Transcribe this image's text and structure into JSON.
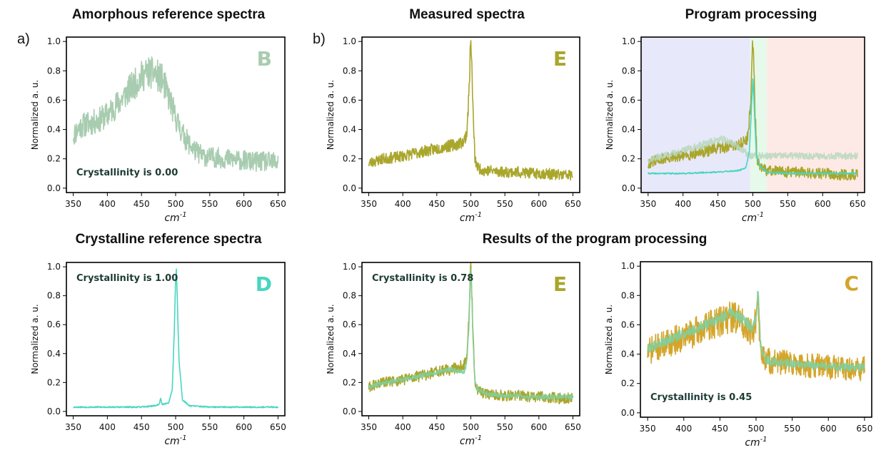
{
  "section_titles": {
    "amorphous": "Amorphous reference spectra",
    "measured": "Measured spectra",
    "program": "Program processing",
    "crystalline": "Crystalline reference spectra",
    "results": "Results of the program processing"
  },
  "panel_tags": {
    "a": "a)",
    "b": "b)"
  },
  "colors": {
    "amorphous": "#a8ccb0",
    "measured_E": "#a9a62c",
    "crystalline": "#48d6bf",
    "measured_C": "#d4a52b",
    "fit": "#7fcf9d",
    "region_left": "#e8e8fb",
    "region_mid": "#e7f9ea",
    "region_right": "#fdeae6"
  },
  "chart_data": [
    {
      "id": "amorphous-ref",
      "type": "line",
      "letter": "B",
      "letter_color": "#a8ccb0",
      "annotation": "Crystallinity is 0.00",
      "annotation_pos": "bottom-left",
      "xlabel": "cm^-1",
      "ylabel": "Normalized a. u.",
      "xlim": [
        340,
        660
      ],
      "ylim": [
        -0.03,
        1.03
      ],
      "xticks": [
        350,
        400,
        450,
        500,
        550,
        600,
        650
      ],
      "yticks": [
        0.0,
        0.2,
        0.4,
        0.6,
        0.8,
        1.0
      ],
      "series": [
        {
          "color": "#a8ccb0",
          "noise": 0.09,
          "seed": 11,
          "x": [
            350,
            360,
            370,
            380,
            390,
            400,
            410,
            420,
            430,
            440,
            450,
            460,
            470,
            480,
            490,
            500,
            510,
            520,
            530,
            540,
            550,
            560,
            570,
            580,
            590,
            600,
            610,
            620,
            630,
            640,
            650
          ],
          "y": [
            0.36,
            0.42,
            0.44,
            0.45,
            0.47,
            0.5,
            0.55,
            0.6,
            0.66,
            0.71,
            0.76,
            0.79,
            0.78,
            0.74,
            0.62,
            0.48,
            0.37,
            0.3,
            0.25,
            0.22,
            0.21,
            0.21,
            0.2,
            0.2,
            0.19,
            0.19,
            0.18,
            0.18,
            0.18,
            0.18,
            0.18
          ]
        }
      ]
    },
    {
      "id": "measured-E",
      "type": "line",
      "letter": "E",
      "letter_color": "#a9a62c",
      "xlabel": "cm^-1",
      "ylabel": "Normalized a. u.",
      "xlim": [
        340,
        660
      ],
      "ylim": [
        -0.03,
        1.03
      ],
      "xticks": [
        350,
        400,
        450,
        500,
        550,
        600,
        650
      ],
      "yticks": [
        0.0,
        0.2,
        0.4,
        0.6,
        0.8,
        1.0
      ],
      "series": [
        {
          "color": "#a9a62c",
          "noise": 0.05,
          "seed": 23,
          "x": [
            350,
            370,
            390,
            410,
            430,
            450,
            470,
            480,
            490,
            494,
            497,
            499,
            500,
            501,
            503,
            506,
            510,
            520,
            530,
            550,
            570,
            590,
            610,
            630,
            650
          ],
          "y": [
            0.17,
            0.2,
            0.21,
            0.23,
            0.25,
            0.27,
            0.29,
            0.3,
            0.32,
            0.38,
            0.62,
            0.92,
            0.99,
            0.9,
            0.55,
            0.2,
            0.14,
            0.12,
            0.12,
            0.11,
            0.11,
            0.1,
            0.1,
            0.09,
            0.09
          ]
        }
      ]
    },
    {
      "id": "program-processing",
      "type": "line",
      "letter": "",
      "letter_color": "#000000",
      "xlabel": "cm^-1",
      "ylabel": "Normalized a. u.",
      "xlim": [
        340,
        660
      ],
      "ylim": [
        -0.03,
        1.03
      ],
      "xticks": [
        350,
        400,
        450,
        500,
        550,
        600,
        650
      ],
      "yticks": [
        0.0,
        0.2,
        0.4,
        0.6,
        0.8,
        1.0
      ],
      "regions": [
        {
          "from": 340,
          "to": 496,
          "color": "#e8e8fb"
        },
        {
          "from": 496,
          "to": 520,
          "color": "#e7f9ea"
        },
        {
          "from": 520,
          "to": 660,
          "color": "#fdeae6"
        }
      ],
      "series": [
        {
          "color": "#a9a62c",
          "noise": 0.05,
          "seed": 31,
          "x": [
            350,
            370,
            390,
            410,
            430,
            450,
            470,
            480,
            490,
            494,
            497,
            499,
            500,
            501,
            503,
            506,
            510,
            520,
            530,
            550,
            570,
            590,
            610,
            630,
            650
          ],
          "y": [
            0.17,
            0.2,
            0.21,
            0.23,
            0.25,
            0.27,
            0.29,
            0.3,
            0.32,
            0.38,
            0.62,
            0.92,
            0.97,
            0.9,
            0.55,
            0.2,
            0.14,
            0.12,
            0.12,
            0.11,
            0.11,
            0.1,
            0.1,
            0.09,
            0.09
          ]
        },
        {
          "color": "#b9d7bd",
          "opacity": 0.85,
          "noise": 0.03,
          "seed": 37,
          "x": [
            350,
            370,
            390,
            410,
            430,
            450,
            460,
            470,
            480,
            490,
            496
          ],
          "y": [
            0.19,
            0.22,
            0.24,
            0.27,
            0.3,
            0.33,
            0.33,
            0.31,
            0.28,
            0.24,
            0.22
          ]
        },
        {
          "color": "#48d6bf",
          "noise": 0.006,
          "seed": 41,
          "x": [
            350,
            400,
            450,
            480,
            490,
            495,
            498,
            500,
            502,
            505,
            510,
            520,
            550,
            600,
            650
          ],
          "y": [
            0.1,
            0.1,
            0.11,
            0.12,
            0.14,
            0.25,
            0.55,
            0.75,
            0.55,
            0.22,
            0.15,
            0.11,
            0.1,
            0.1,
            0.1
          ]
        }
      ]
    },
    {
      "id": "crystalline-ref",
      "type": "line",
      "letter": "D",
      "letter_color": "#48d6bf",
      "annotation": "Crystallinity is 1.00",
      "annotation_pos": "top-left",
      "xlabel": "cm^-1",
      "ylabel": "Normalized a. u.",
      "xlim": [
        340,
        660
      ],
      "ylim": [
        -0.03,
        1.03
      ],
      "xticks": [
        350,
        400,
        450,
        500,
        550,
        600,
        650
      ],
      "yticks": [
        0.0,
        0.2,
        0.4,
        0.6,
        0.8,
        1.0
      ],
      "series": [
        {
          "color": "#48d6bf",
          "noise": 0.006,
          "seed": 53,
          "x": [
            350,
            400,
            450,
            470,
            476,
            478,
            480,
            482,
            490,
            495,
            498,
            500,
            501,
            502,
            505,
            510,
            520,
            550,
            600,
            650
          ],
          "y": [
            0.03,
            0.03,
            0.03,
            0.04,
            0.05,
            0.09,
            0.05,
            0.05,
            0.06,
            0.15,
            0.55,
            0.92,
            0.98,
            0.85,
            0.35,
            0.08,
            0.04,
            0.03,
            0.03,
            0.03
          ]
        }
      ]
    },
    {
      "id": "result-E",
      "type": "line",
      "letter": "E",
      "letter_color": "#a9a62c",
      "annotation": "Crystallinity is 0.78",
      "annotation_pos": "top-left",
      "xlabel": "cm^-1",
      "ylabel": "Normalized a. u.",
      "xlim": [
        340,
        660
      ],
      "ylim": [
        -0.03,
        1.03
      ],
      "xticks": [
        350,
        400,
        450,
        500,
        550,
        600,
        650
      ],
      "yticks": [
        0.0,
        0.2,
        0.4,
        0.6,
        0.8,
        1.0
      ],
      "series": [
        {
          "color": "#a9a62c",
          "noise": 0.05,
          "seed": 61,
          "x": [
            350,
            370,
            390,
            410,
            430,
            450,
            470,
            480,
            490,
            494,
            497,
            499,
            500,
            501,
            503,
            506,
            510,
            520,
            530,
            550,
            570,
            590,
            610,
            630,
            650
          ],
          "y": [
            0.17,
            0.2,
            0.21,
            0.23,
            0.25,
            0.27,
            0.29,
            0.3,
            0.32,
            0.38,
            0.62,
            0.92,
            0.99,
            0.9,
            0.55,
            0.2,
            0.14,
            0.12,
            0.12,
            0.11,
            0.11,
            0.1,
            0.1,
            0.09,
            0.09
          ]
        },
        {
          "color": "#7fcf9d",
          "opacity": 0.9,
          "noise": 0.02,
          "seed": 67,
          "x": [
            350,
            370,
            390,
            410,
            430,
            450,
            470,
            480,
            490,
            494,
            497,
            499,
            500,
            501,
            503,
            506,
            510,
            520,
            530,
            550,
            570,
            590,
            610,
            630,
            650
          ],
          "y": [
            0.17,
            0.2,
            0.21,
            0.23,
            0.25,
            0.27,
            0.29,
            0.28,
            0.27,
            0.34,
            0.58,
            0.9,
            0.99,
            0.88,
            0.52,
            0.2,
            0.15,
            0.13,
            0.12,
            0.11,
            0.11,
            0.1,
            0.1,
            0.1,
            0.1
          ]
        }
      ]
    },
    {
      "id": "result-C",
      "type": "line",
      "letter": "C",
      "letter_color": "#d4a52b",
      "annotation": "Crystallinity is 0.45",
      "annotation_pos": "bottom-left",
      "xlabel": "cm^-1",
      "ylabel": "Normalized a. u.",
      "xlim": [
        340,
        660
      ],
      "ylim": [
        -0.03,
        1.03
      ],
      "xticks": [
        350,
        400,
        450,
        500,
        550,
        600,
        650
      ],
      "yticks": [
        0.0,
        0.2,
        0.4,
        0.6,
        0.8,
        1.0
      ],
      "series": [
        {
          "color": "#d4a52b",
          "noise": 0.1,
          "seed": 71,
          "x": [
            350,
            370,
            390,
            410,
            430,
            450,
            465,
            475,
            485,
            495,
            500,
            503,
            506,
            510,
            520,
            540,
            560,
            580,
            600,
            620,
            640,
            650
          ],
          "y": [
            0.42,
            0.46,
            0.5,
            0.54,
            0.58,
            0.63,
            0.66,
            0.64,
            0.6,
            0.56,
            0.62,
            0.72,
            0.45,
            0.38,
            0.35,
            0.34,
            0.33,
            0.32,
            0.31,
            0.31,
            0.3,
            0.3
          ]
        },
        {
          "color": "#7fcf9d",
          "opacity": 0.9,
          "noise": 0.035,
          "seed": 79,
          "x": [
            350,
            370,
            390,
            410,
            430,
            450,
            465,
            475,
            485,
            495,
            500,
            503,
            506,
            510,
            520,
            540,
            560,
            580,
            600,
            620,
            640,
            650
          ],
          "y": [
            0.44,
            0.48,
            0.52,
            0.56,
            0.6,
            0.65,
            0.68,
            0.66,
            0.62,
            0.58,
            0.66,
            0.86,
            0.46,
            0.38,
            0.35,
            0.34,
            0.33,
            0.32,
            0.32,
            0.31,
            0.31,
            0.31
          ]
        }
      ]
    }
  ]
}
